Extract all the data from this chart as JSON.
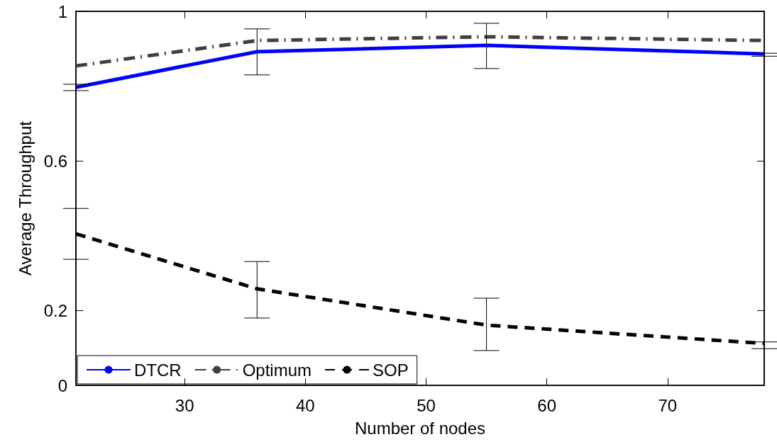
{
  "chart_data": {
    "type": "line",
    "xlabel": "Number of nodes",
    "ylabel": "Average Throughput",
    "x": [
      21,
      36,
      55,
      78
    ],
    "xlim": [
      21,
      78
    ],
    "xticks": [
      30,
      40,
      50,
      60,
      70
    ],
    "ylim": [
      0,
      1
    ],
    "yticks": [
      0,
      0.2,
      0.6,
      1
    ],
    "grid": false,
    "legend": "bottom left",
    "marker": "none",
    "series": [
      {
        "name": "DTCR",
        "color": "#0000ff",
        "line_style": "solid",
        "values": [
          0.797,
          0.892,
          0.909,
          0.886
        ],
        "errors": [
          [
            0.788,
            0.805
          ],
          [
            0.83,
            0.953
          ],
          [
            0.847,
            0.968
          ],
          [
            0.88,
            0.888
          ]
        ]
      },
      {
        "name": "Optimum",
        "color": "#404040",
        "line_style": "dashdot",
        "values": [
          0.854,
          0.922,
          0.932,
          0.922
        ]
      },
      {
        "name": "SOP",
        "color": "#000000",
        "line_style": "dashed",
        "values": [
          0.405,
          0.258,
          0.161,
          0.112
        ],
        "errors": [
          [
            0.337,
            0.473
          ],
          [
            0.18,
            0.331
          ],
          [
            0.093,
            0.233
          ],
          [
            0.098,
            0.116
          ]
        ]
      }
    ]
  }
}
